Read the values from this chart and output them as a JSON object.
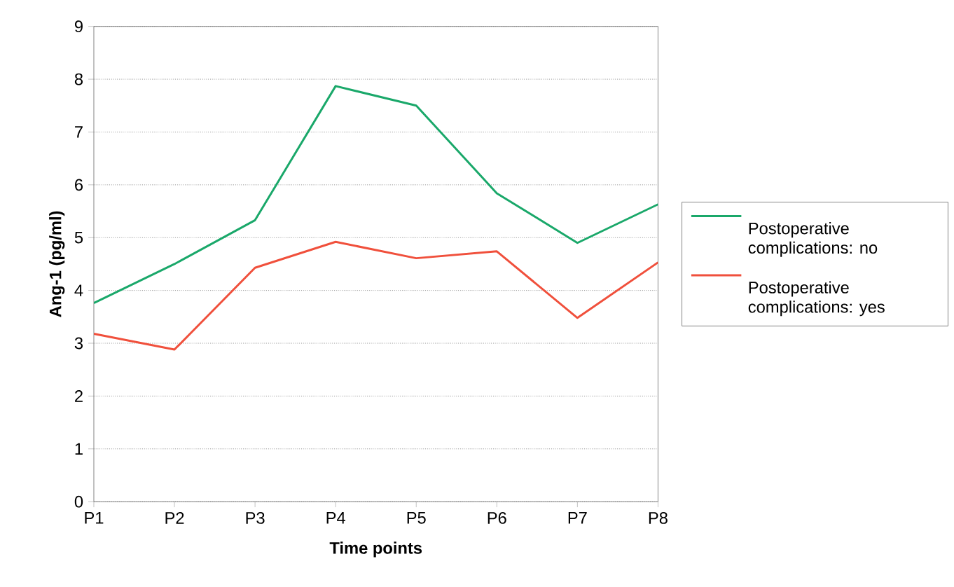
{
  "chart_data": {
    "type": "line",
    "xlabel": "Time points",
    "ylabel": "Ang-1 (pg/ml)",
    "categories": [
      "P1",
      "P2",
      "P3",
      "P4",
      "P5",
      "P6",
      "P7",
      "P8"
    ],
    "series": [
      {
        "name": "Postoperative complications: no",
        "color": "#1aa86a",
        "values": [
          3.76,
          4.5,
          5.33,
          7.87,
          7.5,
          5.84,
          4.9,
          5.63
        ]
      },
      {
        "name": "Postoperative complications: yes",
        "color": "#f0503c",
        "values": [
          3.18,
          2.88,
          4.43,
          4.92,
          4.61,
          4.74,
          3.48,
          4.53
        ]
      }
    ],
    "ylim": [
      0,
      9
    ],
    "yticks": [
      0,
      1,
      2,
      3,
      4,
      5,
      6,
      7,
      8,
      9
    ],
    "grid": "y",
    "legend": "right",
    "marker": "none",
    "line_style": "solid"
  }
}
